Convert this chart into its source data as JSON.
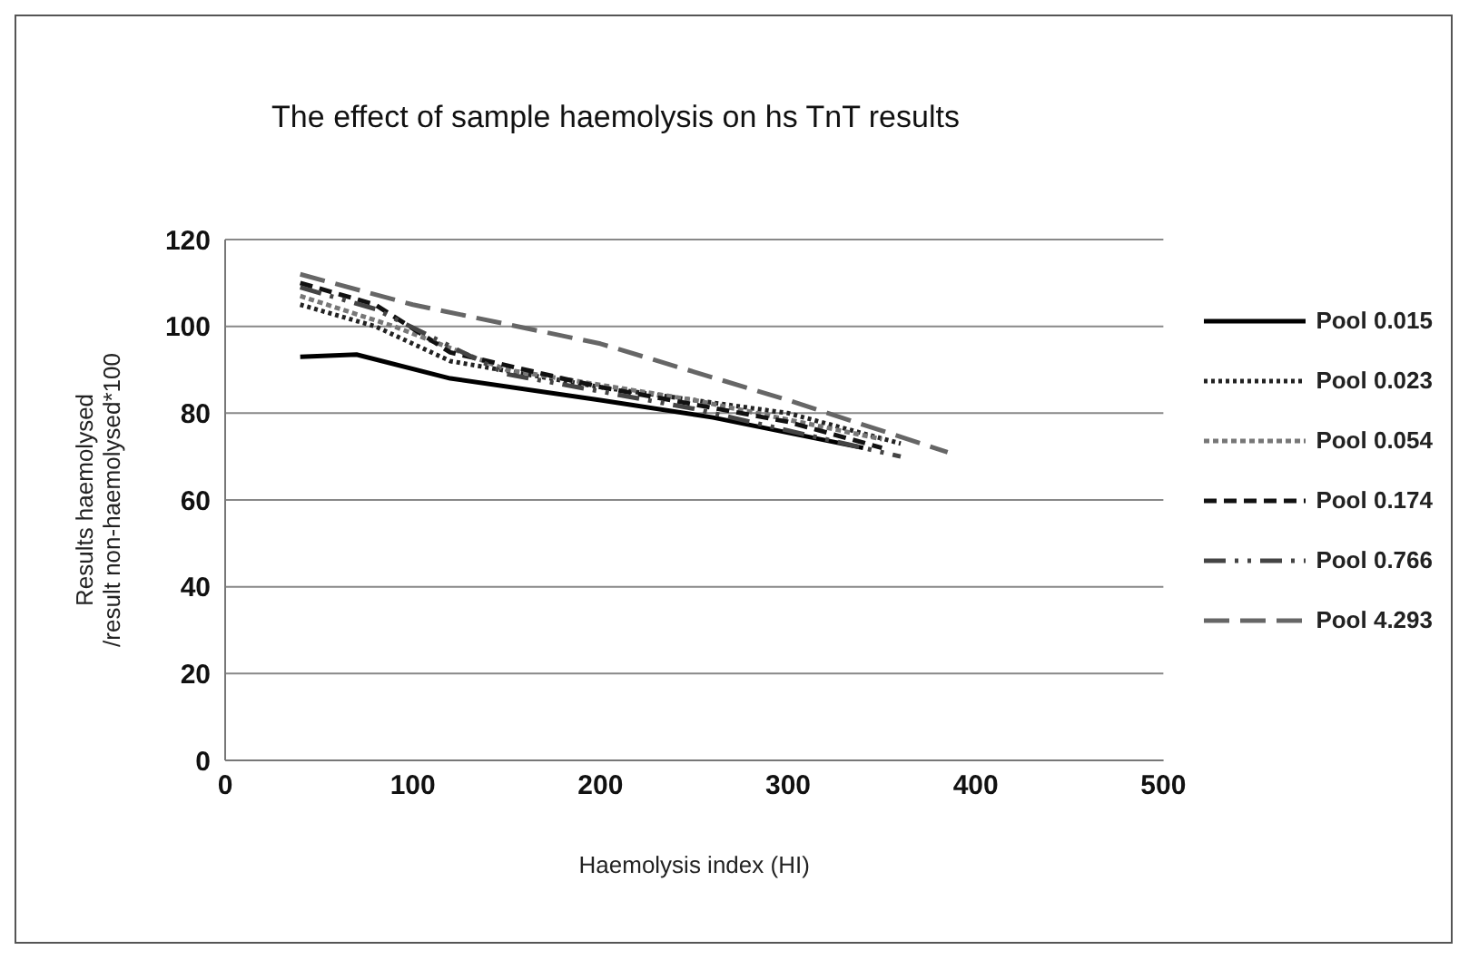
{
  "chart_data": {
    "type": "line",
    "title": "The effect of sample haemolysis on hs TnT results",
    "xlabel": "Haemolysis index (HI)",
    "ylabel": "Results haemolysed\n/result non-haemolysed*100",
    "xlim": [
      0,
      500
    ],
    "xticks": [
      0,
      100,
      200,
      300,
      400,
      500
    ],
    "ylim": [
      0,
      120
    ],
    "yticks": [
      0,
      20,
      40,
      60,
      80,
      100,
      120
    ],
    "grid": "y",
    "legend": "right",
    "marker": "none",
    "series": [
      {
        "name": "Pool 0.015",
        "color": "#000000",
        "line_style": "solid",
        "x": [
          40,
          70,
          120,
          200,
          260,
          340
        ],
        "values": [
          93,
          93.5,
          88,
          83,
          79,
          72
        ]
      },
      {
        "name": "Pool 0.023",
        "color": "#222222",
        "line_style": "dotted",
        "x": [
          40,
          80,
          120,
          200,
          300,
          360
        ],
        "values": [
          105,
          100,
          92,
          86,
          80,
          73
        ]
      },
      {
        "name": "Pool 0.054",
        "color": "#777777",
        "line_style": "dashed",
        "x": [
          40,
          90,
          150,
          250,
          350
        ],
        "values": [
          107,
          100,
          90,
          83,
          74
        ]
      },
      {
        "name": "Pool 0.174",
        "color": "#111111",
        "line_style": "dashed",
        "x": [
          40,
          80,
          120,
          200,
          300,
          350
        ],
        "values": [
          110,
          105,
          94,
          86,
          78,
          72
        ]
      },
      {
        "name": "Pool 0.766",
        "color": "#444444",
        "line_style": "dashed",
        "x": [
          40,
          80,
          150,
          250,
          360
        ],
        "values": [
          109,
          104,
          89,
          81,
          70
        ]
      },
      {
        "name": "Pool 4.293",
        "color": "#666666",
        "line_style": "dashed",
        "x": [
          40,
          100,
          200,
          300,
          385
        ],
        "values": [
          112,
          105,
          96,
          83,
          71
        ]
      }
    ]
  }
}
